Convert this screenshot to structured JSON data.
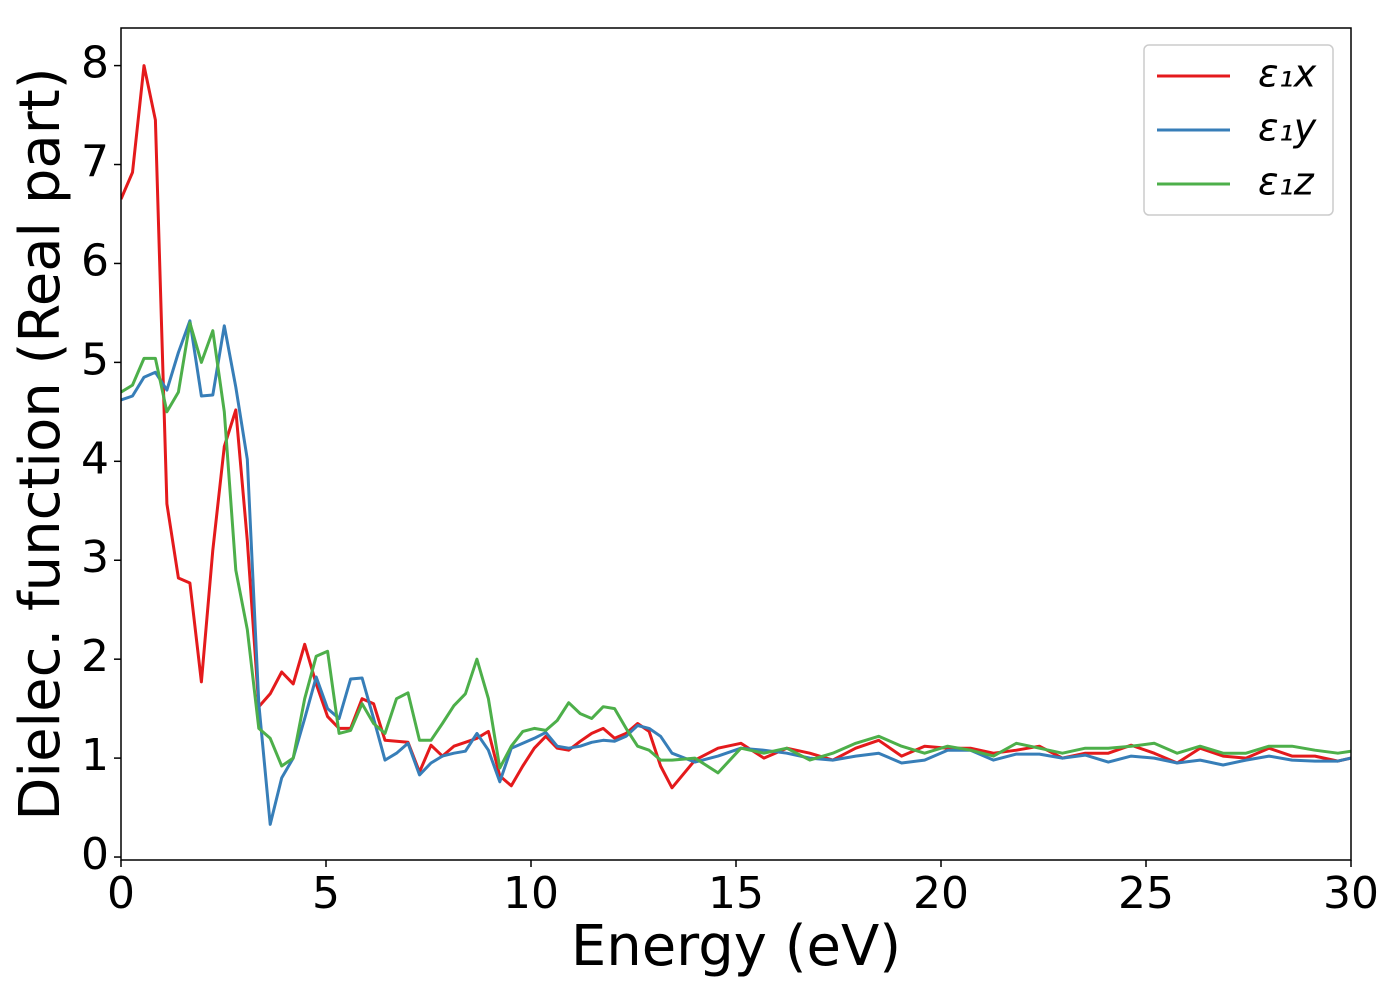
{
  "chart_data": {
    "type": "line",
    "xlabel": "Energy (eV)",
    "ylabel": "Dielec. function (Real part)",
    "x": [
      0,
      0.28,
      0.56,
      0.84,
      1.12,
      1.4,
      1.68,
      1.96,
      2.24,
      2.52,
      2.8,
      3.08,
      3.36,
      3.64,
      3.92,
      4.2,
      4.48,
      4.76,
      5.04,
      5.32,
      5.6,
      5.88,
      6.16,
      6.44,
      6.72,
      7.0,
      7.28,
      7.56,
      7.84,
      8.12,
      8.4,
      8.68,
      8.96,
      9.24,
      9.52,
      9.8,
      10.08,
      10.36,
      10.64,
      10.92,
      11.2,
      11.48,
      11.76,
      12.04,
      12.32,
      12.6,
      12.88,
      13.16,
      13.44,
      14.0,
      14.56,
      15.12,
      15.68,
      16.24,
      16.8,
      17.36,
      17.92,
      18.48,
      19.04,
      19.6,
      20.16,
      20.72,
      21.28,
      21.84,
      22.4,
      22.96,
      23.52,
      24.08,
      24.64,
      25.2,
      25.76,
      26.32,
      26.88,
      27.44,
      28.0,
      28.56,
      29.12,
      29.68,
      30
    ],
    "series": [
      {
        "name": "ε₁x",
        "color": "#e41a1c",
        "values": [
          6.65,
          6.92,
          8.0,
          7.45,
          3.57,
          2.82,
          2.77,
          1.77,
          3.1,
          4.15,
          4.52,
          3.2,
          1.52,
          1.65,
          1.87,
          1.75,
          2.15,
          1.75,
          1.42,
          1.3,
          1.3,
          1.6,
          1.55,
          1.18,
          1.17,
          1.16,
          0.86,
          1.13,
          1.02,
          1.12,
          1.16,
          1.2,
          1.27,
          0.82,
          0.72,
          0.92,
          1.1,
          1.22,
          1.1,
          1.08,
          1.17,
          1.25,
          1.3,
          1.2,
          1.25,
          1.35,
          1.27,
          0.92,
          0.7,
          0.98,
          1.1,
          1.15,
          1.0,
          1.1,
          1.05,
          0.98,
          1.1,
          1.18,
          1.02,
          1.12,
          1.1,
          1.1,
          1.05,
          1.08,
          1.12,
          1.0,
          1.05,
          1.05,
          1.13,
          1.05,
          0.95,
          1.1,
          1.02,
          1.0,
          1.1,
          1.02,
          1.02,
          0.97,
          1.0
        ]
      },
      {
        "name": "ε₁y",
        "color": "#377eb8",
        "values": [
          4.62,
          4.66,
          4.85,
          4.9,
          4.72,
          5.1,
          5.42,
          4.66,
          4.67,
          5.37,
          4.75,
          4.02,
          1.55,
          0.33,
          0.8,
          1.0,
          1.4,
          1.82,
          1.5,
          1.4,
          1.8,
          1.81,
          1.4,
          0.98,
          1.05,
          1.15,
          0.83,
          0.95,
          1.02,
          1.05,
          1.07,
          1.25,
          1.08,
          0.76,
          1.1,
          1.15,
          1.2,
          1.26,
          1.12,
          1.1,
          1.12,
          1.16,
          1.18,
          1.17,
          1.22,
          1.33,
          1.3,
          1.22,
          1.05,
          0.96,
          1.02,
          1.1,
          1.08,
          1.05,
          1.0,
          0.98,
          1.02,
          1.05,
          0.95,
          0.98,
          1.08,
          1.08,
          0.98,
          1.04,
          1.04,
          1.0,
          1.03,
          0.96,
          1.02,
          1.0,
          0.95,
          0.98,
          0.93,
          0.98,
          1.02,
          0.98,
          0.97,
          0.97,
          1.0
        ]
      },
      {
        "name": "ε₁z",
        "color": "#4daf4a",
        "values": [
          4.7,
          4.77,
          5.04,
          5.04,
          4.5,
          4.7,
          5.4,
          5.0,
          5.32,
          4.5,
          2.9,
          2.3,
          1.3,
          1.2,
          0.92,
          1.0,
          1.6,
          2.03,
          2.08,
          1.25,
          1.28,
          1.55,
          1.35,
          1.25,
          1.6,
          1.66,
          1.18,
          1.18,
          1.35,
          1.53,
          1.65,
          2.0,
          1.6,
          0.9,
          1.12,
          1.27,
          1.3,
          1.28,
          1.38,
          1.56,
          1.45,
          1.4,
          1.52,
          1.5,
          1.3,
          1.12,
          1.08,
          0.98,
          0.98,
          1.0,
          0.85,
          1.1,
          1.05,
          1.1,
          0.98,
          1.05,
          1.15,
          1.22,
          1.12,
          1.05,
          1.12,
          1.08,
          1.02,
          1.15,
          1.1,
          1.05,
          1.1,
          1.1,
          1.12,
          1.15,
          1.05,
          1.12,
          1.05,
          1.05,
          1.12,
          1.12,
          1.08,
          1.05,
          1.07
        ]
      }
    ],
    "xlim": [
      0,
      30
    ],
    "xticks": [
      0,
      5,
      10,
      15,
      20,
      25,
      30
    ],
    "ylim": [
      -0.03,
      8.38
    ],
    "yticks": [
      0,
      1,
      2,
      3,
      4,
      5,
      6,
      7,
      8
    ],
    "grid": false,
    "legend": "upper right"
  }
}
